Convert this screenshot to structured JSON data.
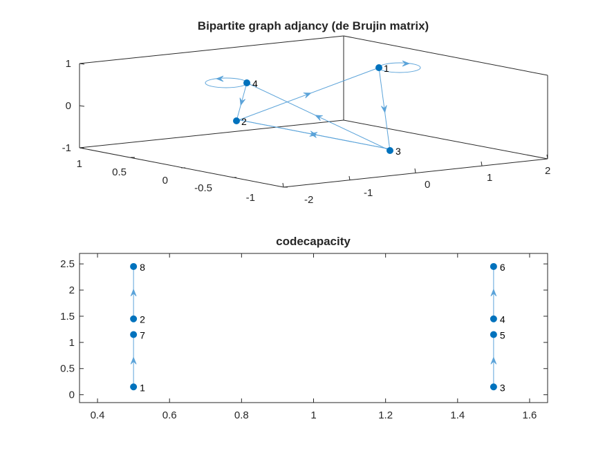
{
  "colors": {
    "node": "#0072BD",
    "edge": "#5BA3D9",
    "axis": "#262626"
  },
  "chart_data": [
    {
      "type": "graph-3d",
      "title": "Bipartite graph adjancy (de Brujin matrix)",
      "axes": {
        "x_ticks": [
          "-2",
          "-1",
          "0",
          "1",
          "2"
        ],
        "y_ticks": [
          "-1",
          "-0.5",
          "0",
          "0.5",
          "1"
        ],
        "z_ticks": [
          "-1",
          "0",
          "1"
        ]
      },
      "nodes": [
        {
          "label": "1"
        },
        {
          "label": "2"
        },
        {
          "label": "3"
        },
        {
          "label": "4"
        }
      ],
      "edges": [
        {
          "from": "1",
          "to": "1"
        },
        {
          "from": "1",
          "to": "3"
        },
        {
          "from": "2",
          "to": "1"
        },
        {
          "from": "2",
          "to": "3"
        },
        {
          "from": "3",
          "to": "2"
        },
        {
          "from": "3",
          "to": "4"
        },
        {
          "from": "4",
          "to": "2"
        },
        {
          "from": "4",
          "to": "4"
        }
      ]
    },
    {
      "type": "graph-2d",
      "title": "codecapacity",
      "xlim": [
        0.35,
        1.65
      ],
      "ylim": [
        -0.15,
        2.7
      ],
      "x_ticks": [
        "0.4",
        "0.6",
        "0.8",
        "1",
        "1.2",
        "1.4",
        "1.6"
      ],
      "y_ticks": [
        "0",
        "0.5",
        "1",
        "1.5",
        "2",
        "2.5"
      ],
      "nodes": [
        {
          "label": "1",
          "x": 0.5,
          "y": 0.15
        },
        {
          "label": "7",
          "x": 0.5,
          "y": 1.15
        },
        {
          "label": "2",
          "x": 0.5,
          "y": 1.45
        },
        {
          "label": "8",
          "x": 0.5,
          "y": 2.45
        },
        {
          "label": "3",
          "x": 1.5,
          "y": 0.15
        },
        {
          "label": "5",
          "x": 1.5,
          "y": 1.15
        },
        {
          "label": "4",
          "x": 1.5,
          "y": 1.45
        },
        {
          "label": "6",
          "x": 1.5,
          "y": 2.45
        }
      ],
      "edges": [
        {
          "from": "1",
          "to": "7"
        },
        {
          "from": "2",
          "to": "8"
        },
        {
          "from": "3",
          "to": "5"
        },
        {
          "from": "4",
          "to": "6"
        }
      ]
    }
  ]
}
